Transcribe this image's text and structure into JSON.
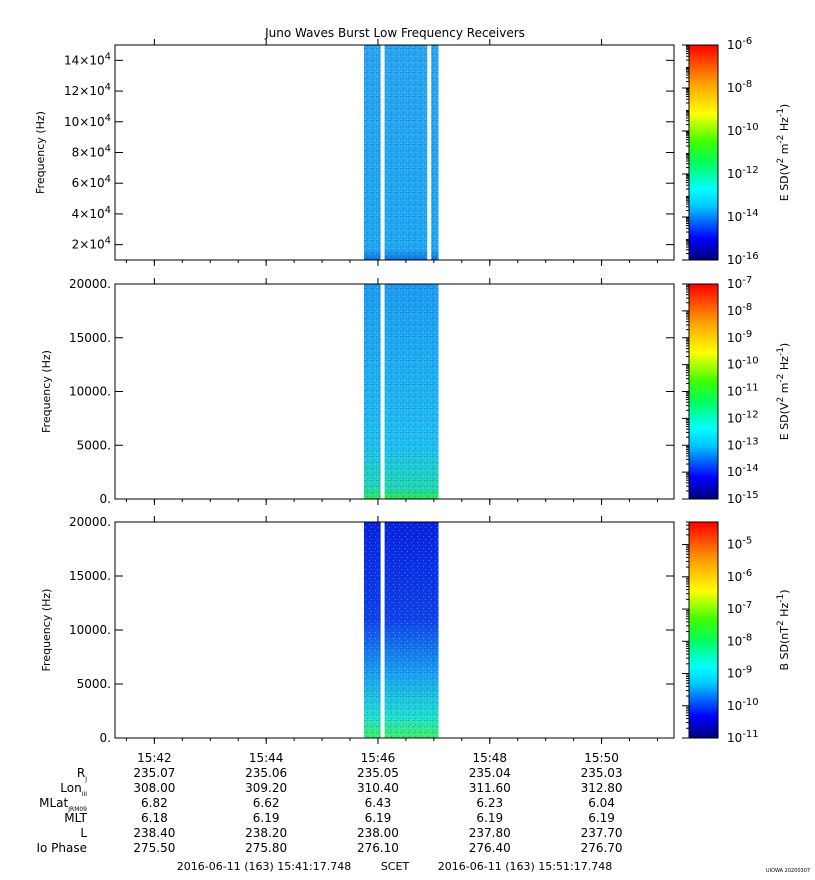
{
  "title": "Juno Waves Burst Low Frequency Receivers",
  "footer": {
    "start": "2016-06-11 (163) 15:41:17.748",
    "scet": "SCET",
    "end": "2016-06-11 (163) 15:51:17.748",
    "credit": "UIOWA 20200307"
  },
  "x_ticks": [
    "15:42",
    "15:44",
    "15:46",
    "15:48",
    "15:50"
  ],
  "ephemeris": {
    "labels": [
      "Rj",
      "LonIII",
      "MLatJRM09",
      "MLT",
      "L",
      "Io Phase"
    ],
    "rows": [
      [
        "235.07",
        "235.06",
        "235.05",
        "235.04",
        "235.03"
      ],
      [
        "308.00",
        "309.20",
        "310.40",
        "311.60",
        "312.80"
      ],
      [
        "6.82",
        "6.62",
        "6.43",
        "6.23",
        "6.04"
      ],
      [
        "6.18",
        "6.19",
        "6.19",
        "6.19",
        "6.19"
      ],
      [
        "238.40",
        "238.20",
        "238.00",
        "237.80",
        "237.70"
      ],
      [
        "275.50",
        "275.80",
        "276.10",
        "276.40",
        "276.70"
      ]
    ]
  },
  "chart_data": [
    {
      "type": "heatmap",
      "ylabel": "Frequency (Hz)",
      "yticks": [
        "2×10^4",
        "4×10^4",
        "6×10^4",
        "8×10^4",
        "10×10^4",
        "12×10^4",
        "14×10^4"
      ],
      "ylim": [
        10000,
        150000
      ],
      "colorbar_label": "E SD(V^2 m^-2 Hz^-1)",
      "colorbar_ticks": [
        "10^-6",
        "10^-8",
        "10^-10",
        "10^-12",
        "10^-14",
        "10^-16"
      ],
      "colorbar_range": [
        -16,
        -6
      ],
      "data_time_range": [
        "15:45:45",
        "15:47:05"
      ],
      "gap_times": [
        "15:46:05",
        "15:46:55"
      ]
    },
    {
      "type": "heatmap",
      "ylabel": "Frequency (Hz)",
      "yticks": [
        "0.",
        "5000.",
        "10000.",
        "15000.",
        "20000."
      ],
      "ylim": [
        0,
        20000
      ],
      "colorbar_label": "E SD(V^2 m^-2 Hz^-1)",
      "colorbar_ticks": [
        "10^-7",
        "10^-8",
        "10^-9",
        "10^-10",
        "10^-11",
        "10^-12",
        "10^-13",
        "10^-14",
        "10^-15"
      ],
      "colorbar_range": [
        -15,
        -7
      ],
      "data_time_range": [
        "15:45:45",
        "15:47:05"
      ],
      "gap_times": [
        "15:46:05"
      ]
    },
    {
      "type": "heatmap",
      "ylabel": "Frequency (Hz)",
      "yticks": [
        "0.",
        "5000.",
        "10000.",
        "15000.",
        "20000."
      ],
      "ylim": [
        0,
        20000
      ],
      "colorbar_label": "B SD(nT^2 Hz^-1)",
      "colorbar_ticks": [
        "10^-5",
        "10^-6",
        "10^-7",
        "10^-8",
        "10^-9",
        "10^-10",
        "10^-11"
      ],
      "colorbar_range": [
        -11,
        -4.3
      ],
      "data_time_range": [
        "15:45:45",
        "15:47:05"
      ],
      "gap_times": [
        "15:46:05"
      ]
    }
  ]
}
